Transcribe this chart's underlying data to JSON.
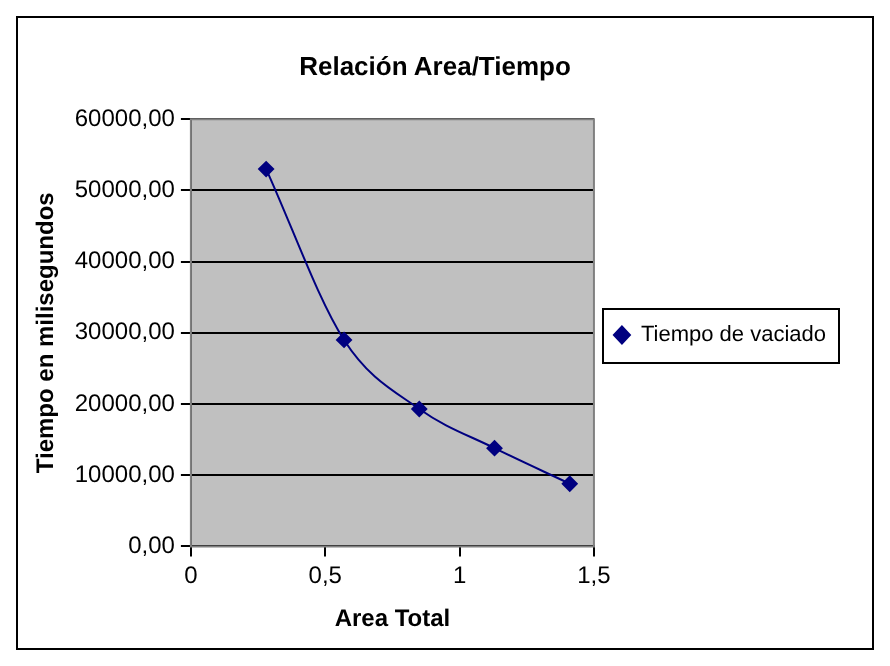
{
  "chart_data": {
    "type": "line",
    "title": "Relación Area/Tiempo",
    "xlabel": "Area Total",
    "ylabel": "Tiempo en milisegundos",
    "x": [
      0.28,
      0.57,
      0.85,
      1.13,
      1.41
    ],
    "series": [
      {
        "name": "Tiempo de vaciado",
        "color": "#000080",
        "values": [
          53000,
          29000,
          19300,
          13800,
          8800
        ]
      }
    ],
    "xlim": [
      0,
      1.5
    ],
    "xticks": [
      {
        "value": 0,
        "label": "0"
      },
      {
        "value": 0.5,
        "label": "0,5"
      },
      {
        "value": 1,
        "label": "1"
      },
      {
        "value": 1.5,
        "label": "1,5"
      }
    ],
    "ylim": [
      0,
      60000
    ],
    "yticks": [
      {
        "value": 0,
        "label": "0,00"
      },
      {
        "value": 10000,
        "label": "10000,00"
      },
      {
        "value": 20000,
        "label": "20000,00"
      },
      {
        "value": 30000,
        "label": "30000,00"
      },
      {
        "value": 40000,
        "label": "40000,00"
      },
      {
        "value": 50000,
        "label": "50000,00"
      },
      {
        "value": 60000,
        "label": "60000,00"
      }
    ],
    "grid": "y",
    "legend": "right",
    "marker": "diamond",
    "line_style": "solid"
  }
}
